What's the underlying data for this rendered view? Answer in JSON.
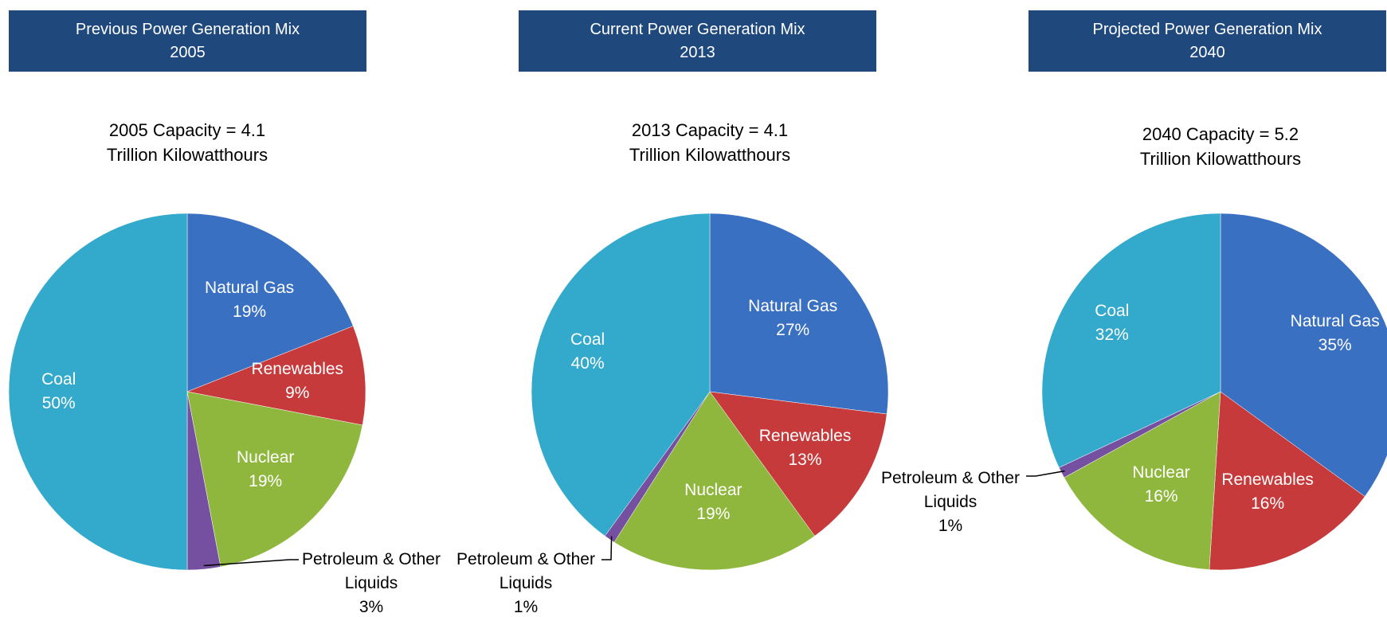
{
  "chart_data": [
    {
      "type": "pie",
      "title": [
        "Previous Power Generation Mix",
        "2005"
      ],
      "subtitle": [
        "2005 Capacity = 4.1",
        "Trillion Kilowatthours"
      ],
      "categories": [
        "Natural Gas",
        "Renewables",
        "Nuclear",
        "Petroleum & Other Liquids",
        "Coal"
      ],
      "values": [
        19,
        9,
        19,
        3,
        50
      ],
      "value_labels": [
        "19%",
        "9%",
        "19%",
        "3%",
        "50%"
      ],
      "colors": [
        "#3a70c2",
        "#c73a3b",
        "#8fb73e",
        "#7650a0",
        "#33a9cb"
      ]
    },
    {
      "type": "pie",
      "title": [
        "Current Power Generation Mix",
        "2013"
      ],
      "subtitle": [
        "2013 Capacity = 4.1",
        "Trillion Kilowatthours"
      ],
      "categories": [
        "Natural Gas",
        "Renewables",
        "Nuclear",
        "Petroleum & Other Liquids",
        "Coal"
      ],
      "values": [
        27,
        13,
        19,
        1,
        40
      ],
      "value_labels": [
        "27%",
        "13%",
        "19%",
        "1%",
        "40%"
      ],
      "colors": [
        "#3a70c2",
        "#c73a3b",
        "#8fb73e",
        "#7650a0",
        "#33a9cb"
      ]
    },
    {
      "type": "pie",
      "title": [
        "Projected Power Generation Mix",
        "2040"
      ],
      "subtitle": [
        "2040 Capacity = 5.2",
        "Trillion Kilowatthours"
      ],
      "categories": [
        "Natural Gas",
        "Renewables",
        "Nuclear",
        "Petroleum & Other Liquids",
        "Coal"
      ],
      "values": [
        35,
        16,
        16,
        1,
        32
      ],
      "value_labels": [
        "35%",
        "16%",
        "16%",
        "1%",
        "32%"
      ],
      "colors": [
        "#3a70c2",
        "#c73a3b",
        "#8fb73e",
        "#7650a0",
        "#33a9cb"
      ]
    }
  ]
}
